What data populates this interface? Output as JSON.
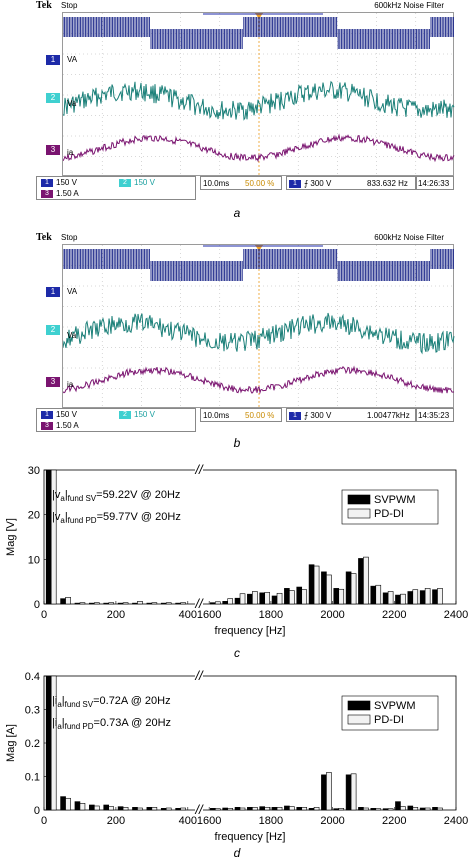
{
  "scope_a": {
    "brand": "Tek",
    "state": "Stop",
    "filter": "600kHz  Noise Filter",
    "channels": [
      {
        "marker": "1",
        "name": "VA"
      },
      {
        "marker": "2",
        "name": "Va"
      },
      {
        "marker": "3",
        "name": "ia"
      }
    ],
    "settings": {
      "ch1": "150 V",
      "ch2": "150 V",
      "ch3": "1.50 A",
      "timebase": "10.0ms",
      "trigger_pos": "50.00 %",
      "trigger_ch": "1",
      "trigger_level": "300 V",
      "frequency": "833.632 Hz",
      "time": "14:26:33"
    },
    "caption": "a"
  },
  "scope_b": {
    "brand": "Tek",
    "state": "Stop",
    "filter": "600kHz  Noise Filter",
    "channels": [
      {
        "marker": "1",
        "name": "VA"
      },
      {
        "marker": "2",
        "name": "Va"
      },
      {
        "marker": "3",
        "name": "ia"
      }
    ],
    "settings": {
      "ch1": "150 V",
      "ch2": "150 V",
      "ch3": "1.50 A",
      "timebase": "10.0ms",
      "trigger_pos": "50.00 %",
      "trigger_ch": "1",
      "trigger_level": "300 V",
      "frequency": "1.00477kHz",
      "time": "14:35:23"
    },
    "caption": "b"
  },
  "colors": {
    "ch1": "#1f2a8a",
    "ch2": "#1a7f78",
    "ch3": "#7a1470",
    "ch1_chip": "#1d2aa8",
    "ch2_chip": "#3fd0d0",
    "ch3_chip": "#7a1470",
    "grid": "#b0b0b0",
    "trigger": "#f0a020",
    "svpwm": "#000000",
    "pddi": "#f2f2f2"
  },
  "chart_data": [
    {
      "type": "bar",
      "caption": "c",
      "xlabel": "frequency [Hz]",
      "ylabel": "Mag [V]",
      "ylim": [
        0,
        30
      ],
      "yticks": [
        0,
        10,
        20,
        30
      ],
      "xticks_left": [
        0,
        200,
        400
      ],
      "xticks_right": [
        1600,
        1800,
        2000,
        2200,
        2400
      ],
      "x_ranges": [
        [
          0,
          420
        ],
        [
          1580,
          2400
        ]
      ],
      "legend_position": "top-right",
      "annotations": [
        {
          "pre": "|v",
          "sub1": "a",
          "mid": "|",
          "sub2": "fund SV",
          "post": "=59.22V @ 20Hz"
        },
        {
          "pre": "|v",
          "sub1": "a",
          "mid": "|",
          "sub2": "fund PD",
          "post": "=59.77V @ 20Hz"
        }
      ],
      "series": [
        {
          "name": "SVPWM",
          "x": [
            20,
            60,
            100,
            140,
            180,
            220,
            260,
            300,
            340,
            380,
            1620,
            1660,
            1700,
            1740,
            1780,
            1820,
            1860,
            1900,
            1940,
            1980,
            2020,
            2060,
            2100,
            2140,
            2180,
            2220,
            2260,
            2300,
            2340
          ],
          "values": [
            30,
            1.2,
            0.2,
            0.2,
            0.2,
            0.2,
            0.2,
            0.2,
            0.2,
            0.2,
            0.3,
            0.6,
            1.3,
            2.2,
            2.5,
            1.8,
            3.5,
            3.8,
            8.8,
            7.2,
            3.5,
            7.2,
            10.2,
            4.0,
            2.5,
            2.0,
            2.8,
            3.0,
            3.2
          ]
        },
        {
          "name": "PD-DI",
          "x": [
            20,
            60,
            100,
            140,
            180,
            220,
            260,
            300,
            340,
            380,
            1620,
            1660,
            1700,
            1740,
            1780,
            1820,
            1860,
            1900,
            1940,
            1980,
            2020,
            2060,
            2100,
            2140,
            2180,
            2220,
            2260,
            2300,
            2340
          ],
          "values": [
            30,
            1.5,
            0.3,
            0.3,
            0.3,
            0.3,
            0.6,
            0.3,
            0.3,
            0.3,
            0.5,
            1.2,
            2.3,
            2.8,
            2.6,
            2.4,
            3.0,
            3.2,
            8.5,
            6.5,
            3.3,
            6.8,
            10.5,
            4.2,
            2.8,
            2.2,
            3.2,
            3.5,
            3.5
          ]
        }
      ]
    },
    {
      "type": "bar",
      "caption": "d",
      "xlabel": "frequency [Hz]",
      "ylabel": "Mag [A]",
      "ylim": [
        0,
        0.4
      ],
      "yticks": [
        0,
        0.1,
        0.2,
        0.3,
        0.4
      ],
      "xticks_left": [
        0,
        200,
        400
      ],
      "xticks_right": [
        1600,
        1800,
        2000,
        2200,
        2400
      ],
      "x_ranges": [
        [
          0,
          420
        ],
        [
          1580,
          2400
        ]
      ],
      "legend_position": "top-right",
      "annotations": [
        {
          "pre": "|i",
          "sub1": "a",
          "mid": "|",
          "sub2": "fund SV",
          "post": "=0.72A @ 20Hz"
        },
        {
          "pre": "|i",
          "sub1": "a",
          "mid": "|",
          "sub2": "fund PD",
          "post": "=0.73A @ 20Hz"
        }
      ],
      "series": [
        {
          "name": "SVPWM",
          "x": [
            20,
            60,
            100,
            140,
            180,
            220,
            260,
            300,
            340,
            380,
            1620,
            1660,
            1700,
            1740,
            1780,
            1820,
            1860,
            1900,
            1940,
            1980,
            2020,
            2060,
            2100,
            2140,
            2180,
            2220,
            2260,
            2300,
            2340
          ],
          "values": [
            0.4,
            0.04,
            0.025,
            0.015,
            0.015,
            0.01,
            0.008,
            0.008,
            0.005,
            0.005,
            0.005,
            0.006,
            0.008,
            0.008,
            0.01,
            0.008,
            0.012,
            0.008,
            0.005,
            0.105,
            0.004,
            0.105,
            0.008,
            0.005,
            0.004,
            0.025,
            0.012,
            0.006,
            0.008
          ]
        },
        {
          "name": "PD-DI",
          "x": [
            20,
            60,
            100,
            140,
            180,
            220,
            260,
            300,
            340,
            380,
            1620,
            1660,
            1700,
            1740,
            1780,
            1820,
            1860,
            1900,
            1940,
            1980,
            2020,
            2060,
            2100,
            2140,
            2180,
            2220,
            2260,
            2300,
            2340
          ],
          "values": [
            0.4,
            0.035,
            0.02,
            0.012,
            0.01,
            0.008,
            0.006,
            0.008,
            0.006,
            0.006,
            0.004,
            0.005,
            0.006,
            0.008,
            0.008,
            0.008,
            0.01,
            0.008,
            0.008,
            0.112,
            0.005,
            0.108,
            0.006,
            0.004,
            0.004,
            0.01,
            0.008,
            0.006,
            0.006
          ]
        }
      ]
    }
  ]
}
